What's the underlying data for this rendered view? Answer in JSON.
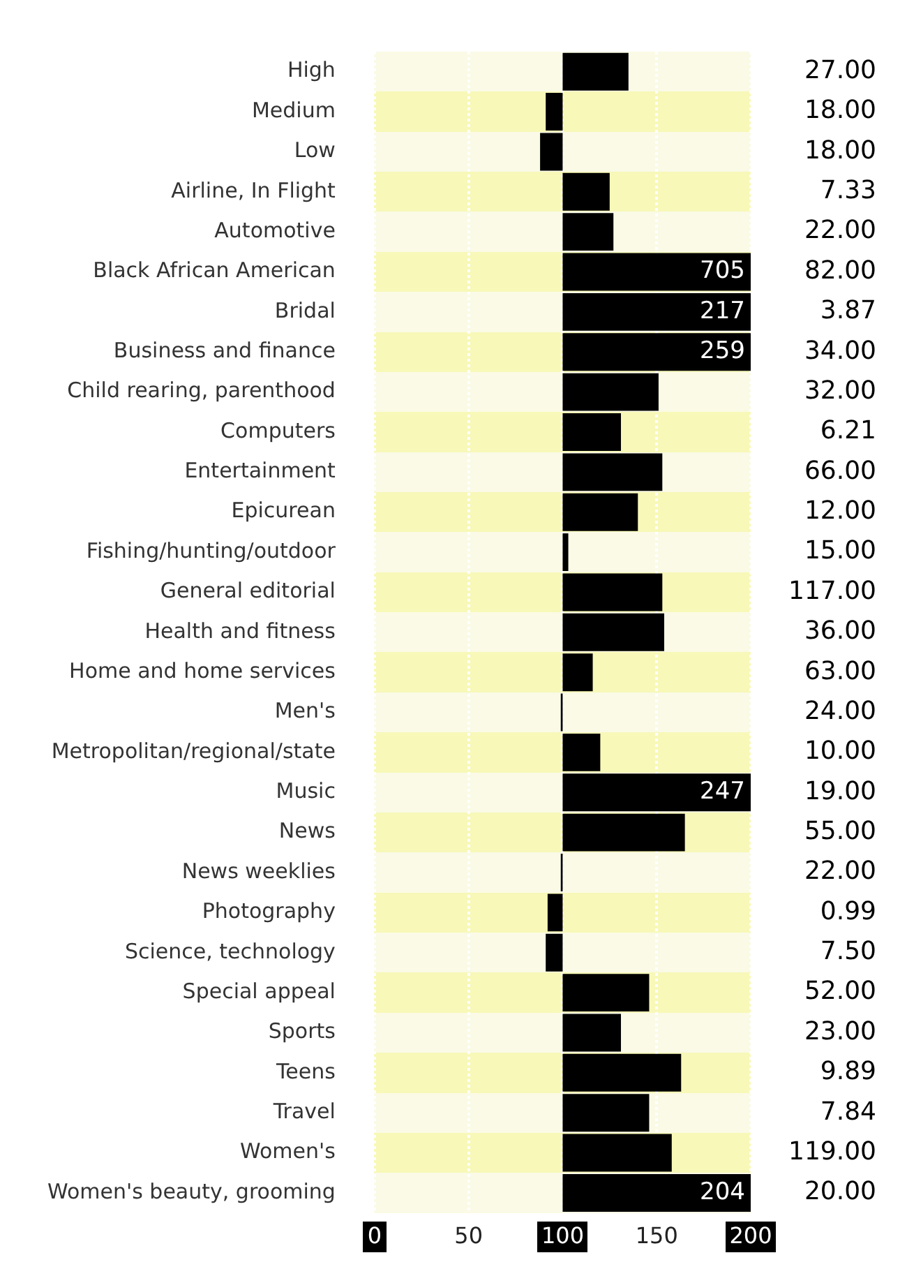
{
  "chart_data": {
    "type": "bar",
    "orientation": "horizontal",
    "categories": [
      "High",
      "Medium",
      "Low",
      "Airline, In Flight",
      "Automotive",
      "Black African American",
      "Bridal",
      "Business and finance",
      "Child rearing, parenthood",
      "Computers",
      "Entertainment",
      "Epicurean",
      "Fishing/hunting/outdoor",
      "General editorial",
      "Health and fitness",
      "Home and home services",
      "Men's",
      "Metropolitan/regional/state",
      "Music",
      "News",
      "News weeklies",
      "Photography",
      "Science, technology",
      "Special appeal",
      "Sports",
      "Teens",
      "Travel",
      "Women's",
      "Women's beauty, grooming"
    ],
    "base": [
      100,
      100,
      100,
      100,
      100,
      100,
      100,
      100,
      100,
      100,
      100,
      100,
      100,
      100,
      100,
      100,
      100,
      100,
      100,
      100,
      100,
      100,
      100,
      100,
      100,
      100,
      100,
      100,
      100
    ],
    "values": [
      35,
      -9,
      -12,
      25,
      27,
      605,
      117,
      159,
      51,
      31,
      53,
      40,
      3,
      53,
      54,
      16,
      -1,
      20,
      147,
      65,
      -1,
      -8,
      -9,
      46,
      31,
      63,
      46,
      58,
      104
    ],
    "value_labels": [
      null,
      null,
      null,
      null,
      null,
      "705",
      "217",
      "259",
      null,
      null,
      null,
      null,
      null,
      null,
      null,
      null,
      null,
      null,
      "247",
      null,
      null,
      null,
      null,
      null,
      null,
      null,
      null,
      null,
      "204"
    ],
    "color": "#000000",
    "xlim": [
      0,
      200
    ],
    "xticks": [
      0,
      50,
      100,
      150,
      200
    ],
    "grid": "x",
    "legend": false,
    "annotations": [
      "27.00",
      "18.00",
      "18.00",
      "7.33",
      "22.00",
      "82.00",
      "3.87",
      "34.00",
      "32.00",
      "6.21",
      "66.00",
      "12.00",
      "15.00",
      "117.00",
      "36.00",
      "63.00",
      "24.00",
      "10.00",
      "19.00",
      "55.00",
      "22.00",
      "0.99",
      "7.50",
      "52.00",
      "23.00",
      "9.89",
      "7.84",
      "119.00",
      "20.00"
    ]
  }
}
